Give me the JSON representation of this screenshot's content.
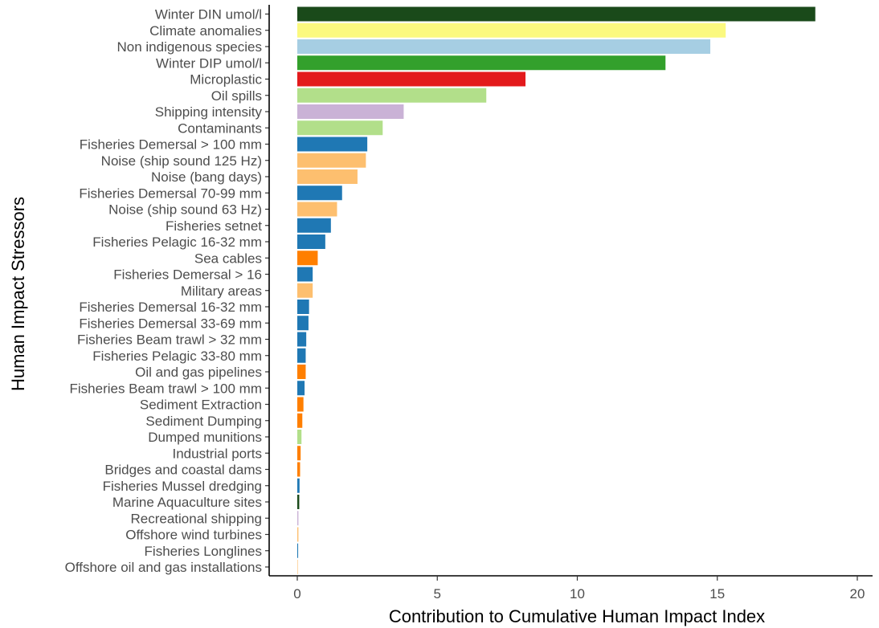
{
  "chart_data": {
    "type": "bar",
    "orientation": "horizontal",
    "xlabel": "Contribution to Cumulative Human Impact Index",
    "ylabel": "Human Impact Stressors",
    "xlim": [
      0,
      20
    ],
    "xticks": [
      0,
      5,
      10,
      15,
      20
    ],
    "xtick_labels": [
      "0",
      "5",
      "10",
      "15",
      "20"
    ],
    "grid": false,
    "legend": "none",
    "bars": [
      {
        "label": "Winter DIN umol/l",
        "value": 18.5,
        "color": "#1a4a1a"
      },
      {
        "label": "Climate anomalies",
        "value": 15.3,
        "color": "#fbf97f"
      },
      {
        "label": "Non indigenous species",
        "value": 14.75,
        "color": "#a6cee3"
      },
      {
        "label": "Winter DIP umol/l",
        "value": 13.15,
        "color": "#33a02c"
      },
      {
        "label": "Microplastic",
        "value": 8.15,
        "color": "#e31a1c"
      },
      {
        "label": "Oil spills",
        "value": 6.75,
        "color": "#b2df8a"
      },
      {
        "label": "Shipping intensity",
        "value": 3.8,
        "color": "#cab2d6"
      },
      {
        "label": "Contaminants",
        "value": 3.05,
        "color": "#b2df8a"
      },
      {
        "label": "Fisheries Demersal > 100 mm",
        "value": 2.5,
        "color": "#1f78b4"
      },
      {
        "label": "Noise (ship sound 125 Hz)",
        "value": 2.45,
        "color": "#fdbf6f"
      },
      {
        "label": "Noise (bang days)",
        "value": 2.15,
        "color": "#fdbf6f"
      },
      {
        "label": "Fisheries Demersal 70-99 mm",
        "value": 1.6,
        "color": "#1f78b4"
      },
      {
        "label": "Noise (ship sound 63 Hz)",
        "value": 1.42,
        "color": "#fdbf6f"
      },
      {
        "label": "Fisheries setnet",
        "value": 1.2,
        "color": "#1f78b4"
      },
      {
        "label": "Fisheries Pelagic 16-32 mm",
        "value": 1.0,
        "color": "#1f78b4"
      },
      {
        "label": "Sea cables",
        "value": 0.73,
        "color": "#ff7f00"
      },
      {
        "label": "Fisheries Demersal > 16",
        "value": 0.55,
        "color": "#1f78b4"
      },
      {
        "label": "Military areas",
        "value": 0.55,
        "color": "#fdbf6f"
      },
      {
        "label": "Fisheries Demersal 16-32 mm",
        "value": 0.42,
        "color": "#1f78b4"
      },
      {
        "label": "Fisheries Demersal 33-69 mm",
        "value": 0.4,
        "color": "#1f78b4"
      },
      {
        "label": "Fisheries Beam trawl > 32 mm",
        "value": 0.32,
        "color": "#1f78b4"
      },
      {
        "label": "Fisheries Pelagic 33-80 mm",
        "value": 0.3,
        "color": "#1f78b4"
      },
      {
        "label": "Oil and gas pipelines",
        "value": 0.3,
        "color": "#ff7f00"
      },
      {
        "label": "Fisheries Beam trawl > 100 mm",
        "value": 0.26,
        "color": "#1f78b4"
      },
      {
        "label": "Sediment Extraction",
        "value": 0.22,
        "color": "#ff7f00"
      },
      {
        "label": "Sediment Dumping",
        "value": 0.18,
        "color": "#ff7f00"
      },
      {
        "label": "Dumped munitions",
        "value": 0.15,
        "color": "#b2df8a"
      },
      {
        "label": "Industrial ports",
        "value": 0.12,
        "color": "#ff7f00"
      },
      {
        "label": "Bridges and coastal dams",
        "value": 0.1,
        "color": "#ff7f00"
      },
      {
        "label": "Fisheries Mussel dredging",
        "value": 0.08,
        "color": "#1f78b4"
      },
      {
        "label": "Marine Aquaculture sites",
        "value": 0.07,
        "color": "#1a4a1a"
      },
      {
        "label": "Recreational shipping",
        "value": 0.04,
        "color": "#cab2d6"
      },
      {
        "label": "Offshore wind turbines",
        "value": 0.04,
        "color": "#fdbf6f"
      },
      {
        "label": "Fisheries Longlines",
        "value": 0.03,
        "color": "#1f78b4"
      },
      {
        "label": "Offshore oil and gas installations",
        "value": 0.01,
        "color": "#fdbf6f"
      }
    ]
  }
}
